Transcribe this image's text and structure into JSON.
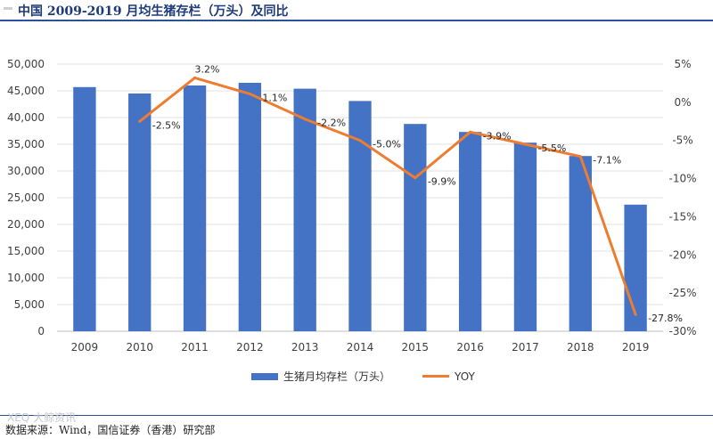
{
  "header": {
    "title": "中国 2009-2019 月均生猪存栏（万头）及同比"
  },
  "chart_data": {
    "type": "bar",
    "categories": [
      "2009",
      "2010",
      "2011",
      "2012",
      "2013",
      "2014",
      "2015",
      "2016",
      "2017",
      "2018",
      "2019"
    ],
    "series": [
      {
        "name": "生猪月均存栏（万头）",
        "type": "bar",
        "axis": "left",
        "color": "#4472c4",
        "values": [
          45700,
          44500,
          46000,
          46500,
          45400,
          43100,
          38800,
          37300,
          35300,
          32800,
          23700
        ]
      },
      {
        "name": "YOY",
        "type": "line",
        "axis": "right",
        "color": "#ed7d31",
        "values": [
          null,
          -2.5,
          3.2,
          1.1,
          -2.2,
          -5.0,
          -9.9,
          -3.9,
          -5.5,
          -7.1,
          -27.8
        ]
      }
    ],
    "data_labels": [
      "",
      "-2.5%",
      "3.2%",
      "1.1%",
      "-2.2%",
      "-5.0%",
      "-9.9%",
      "-3.9%",
      "-5.5%",
      "-7.1%",
      "-27.8%"
    ],
    "y_left": {
      "min": 0,
      "max": 50000,
      "step": 5000,
      "ticks": [
        "0",
        "5,000",
        "10,000",
        "15,000",
        "20,000",
        "25,000",
        "30,000",
        "35,000",
        "40,000",
        "45,000",
        "50,000"
      ]
    },
    "y_right": {
      "min": -30,
      "max": 5,
      "step": 5,
      "ticks": [
        "-30%",
        "-25%",
        "-20%",
        "-15%",
        "-10%",
        "-5%",
        "0%",
        "5%"
      ]
    },
    "grid": true,
    "legend_position": "bottom"
  },
  "legend": {
    "bar_label": "生猪月均存栏（万头）",
    "line_label": "YOY"
  },
  "source": {
    "text": "数据来源：Wind，国信证券（香港）研究部"
  },
  "watermark": {
    "text": "XEQ 大鲸资讯"
  }
}
